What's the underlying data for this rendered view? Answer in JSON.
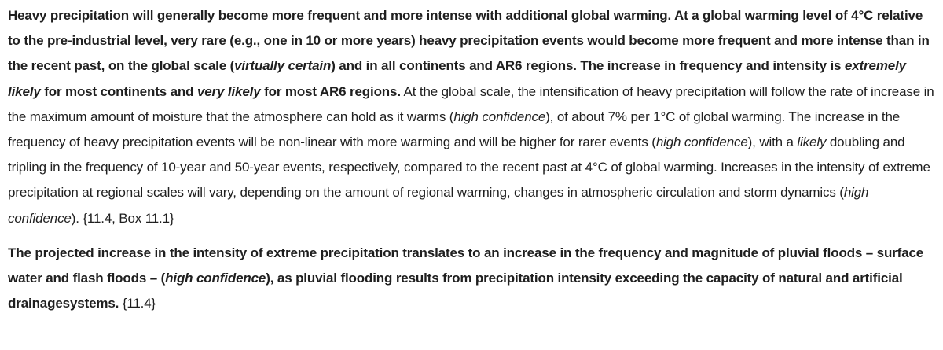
{
  "paragraph1": {
    "s1": "Heavy precipitation will generally become more frequent and more intense with additional global warming. At a global warming level of 4°C relative to the pre-industrial level, very rare (e.g., one in 10 or more years) heavy precipitation events would become more frequent and more intense than in the recent past, on the global scale (",
    "s1_italic": "virtually certain",
    "s1_end": ") and in all continents and AR6 regions. The increase in frequency and intensity is ",
    "s2_italic_a": "extremely likely",
    "s2_mid": " for most continents and ",
    "s2_italic_b": "very likely",
    "s2_end": " for most AR6 regions.",
    "r1": " At the global scale, the intensification of heavy precipitation will follow the rate of increase in the maximum amount of moisture that the atmosphere can hold as it warms (",
    "r1_italic": "high confidence",
    "r2": "), of about 7% per 1°C of global warming. The increase in the frequency of heavy precipitation events will be non-linear with more warming and will be higher for rarer events (",
    "r2_italic": "high confidence",
    "r3": "), with a ",
    "r3_italic": "likely",
    "r4": " doubling and tripling in the frequency of 10-year and 50-year events, respectively, compared to the recent past at 4°C of global warming. Increases in the intensity of extreme precipitation at regional scales will vary, depending on the amount of regional warming, changes in atmospheric circulation and storm dynamics (",
    "r4_italic": "high confidence",
    "r5": "). {11.4, Box 11.1}"
  },
  "paragraph2": {
    "b1": "The projected increase in the intensity of extreme precipitation translates to an increase in the frequency and magnitude of pluvial floods – surface water and flash floods – (",
    "b1_italic": "high confidence",
    "b2": "), as pluvial flooding results from precipitation intensity exceeding the capacity of natural and artificial drainagesystems.",
    "ref": " {11.4}"
  }
}
